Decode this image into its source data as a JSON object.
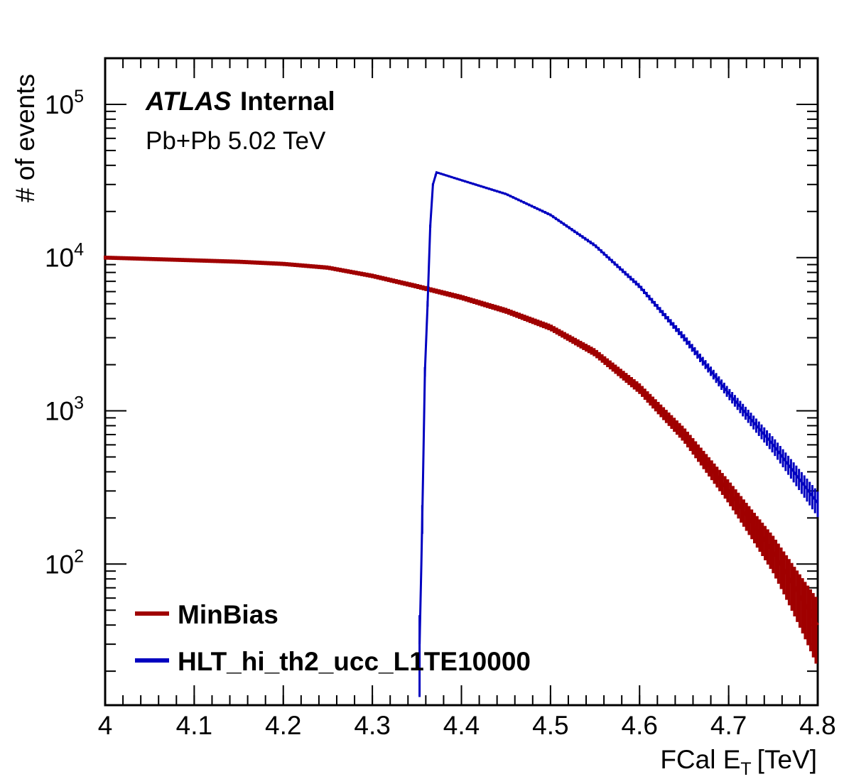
{
  "chart_data": {
    "type": "line",
    "annotation": {
      "experiment": "ATLAS",
      "status": "Internal",
      "system": "Pb+Pb 5.02 TeV"
    },
    "xlabel": "FCal E",
    "xlabel_sub": "T",
    "xlabel_unit": "[TeV]",
    "ylabel": "# of events",
    "xlim": [
      4.0,
      4.8
    ],
    "ylim": [
      12,
      200000
    ],
    "y_scale": "log",
    "x_ticks": [
      "4",
      "4.1",
      "4.2",
      "4.3",
      "4.4",
      "4.5",
      "4.6",
      "4.7",
      "4.8"
    ],
    "y_ticks": [
      {
        "base": "10",
        "exp": "2",
        "value": 100
      },
      {
        "base": "10",
        "exp": "3",
        "value": 1000
      },
      {
        "base": "10",
        "exp": "4",
        "value": 10000
      },
      {
        "base": "10",
        "exp": "5",
        "value": 100000
      }
    ],
    "grid": false,
    "legend_position": "bottom-left",
    "series": [
      {
        "name": "MinBias",
        "color": "#a00000",
        "points": [
          [
            4.0,
            10000
          ],
          [
            4.05,
            9800
          ],
          [
            4.1,
            9600
          ],
          [
            4.15,
            9400
          ],
          [
            4.2,
            9100
          ],
          [
            4.25,
            8600
          ],
          [
            4.3,
            7600
          ],
          [
            4.35,
            6500
          ],
          [
            4.4,
            5500
          ],
          [
            4.45,
            4500
          ],
          [
            4.5,
            3500
          ],
          [
            4.55,
            2400
          ],
          [
            4.6,
            1400
          ],
          [
            4.65,
            700
          ],
          [
            4.7,
            300
          ],
          [
            4.75,
            120
          ],
          [
            4.8,
            40
          ]
        ]
      },
      {
        "name": "HLT_hi_th2_ucc_L1TE10000",
        "color": "#0000c0",
        "points": [
          [
            4.353,
            30
          ],
          [
            4.355,
            100
          ],
          [
            4.357,
            400
          ],
          [
            4.359,
            1800
          ],
          [
            4.362,
            5000
          ],
          [
            4.365,
            16000
          ],
          [
            4.368,
            30000
          ],
          [
            4.372,
            36000
          ],
          [
            4.4,
            32000
          ],
          [
            4.45,
            26000
          ],
          [
            4.5,
            19000
          ],
          [
            4.55,
            12000
          ],
          [
            4.6,
            6500
          ],
          [
            4.65,
            3000
          ],
          [
            4.7,
            1300
          ],
          [
            4.75,
            600
          ],
          [
            4.8,
            250
          ]
        ]
      }
    ]
  }
}
